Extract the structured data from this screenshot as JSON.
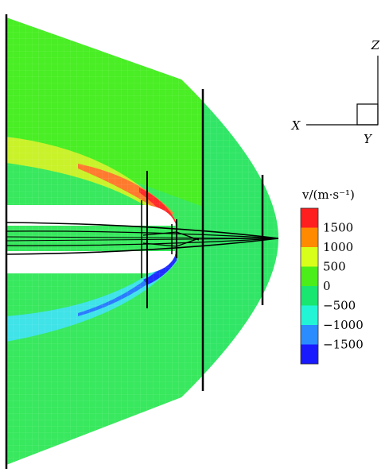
{
  "axes": {
    "z_label": "Z",
    "x_label": "X",
    "y_label": "Y"
  },
  "legend": {
    "title": "v/(m·s⁻¹)",
    "tick_labels": [
      "1500",
      "1000",
      "500",
      "0",
      "−500",
      "−1000",
      "−1500"
    ],
    "colors": [
      "#ff1f1f",
      "#ff8a00",
      "#d8ff1a",
      "#4cee1a",
      "#19e671",
      "#22f5d6",
      "#2b8cff",
      "#1a1aff"
    ]
  },
  "field_colors": {
    "background": "#38e85e",
    "positive_band": "#c9f22a",
    "high_band": "#ff7a2e",
    "peak": "#ff2a2a",
    "negative_band": "#3fe3e8",
    "low_band": "#2a7bff",
    "trough": "#1f2cff"
  }
}
